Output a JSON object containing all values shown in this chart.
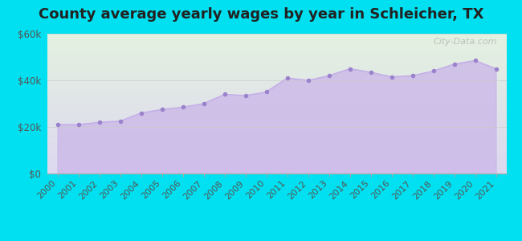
{
  "title": "County average yearly wages by year in Schleicher, TX",
  "years": [
    2000,
    2001,
    2002,
    2003,
    2004,
    2005,
    2006,
    2007,
    2008,
    2009,
    2010,
    2011,
    2012,
    2013,
    2014,
    2015,
    2016,
    2017,
    2018,
    2019,
    2020,
    2021
  ],
  "wages": [
    21000,
    21000,
    22000,
    22500,
    26000,
    27500,
    28500,
    30000,
    34000,
    33500,
    35000,
    41000,
    40000,
    42000,
    45000,
    43500,
    41500,
    42000,
    44000,
    47000,
    48500,
    45000
  ],
  "ylim": [
    0,
    60000
  ],
  "yticks": [
    0,
    20000,
    40000,
    60000
  ],
  "ytick_labels": [
    "$0",
    "$20k",
    "$40k",
    "$60k"
  ],
  "line_color": "#c4aee8",
  "fill_color": "#cbb8e8",
  "marker_color": "#9b82cc",
  "marker_size": 4,
  "bg_outer": "#00e0f0",
  "bg_chart_top": "#e4f2e0",
  "bg_chart_bottom": "#ddd8f0",
  "watermark": "City-Data.com",
  "title_fontsize": 13,
  "tick_fontsize": 8.5
}
